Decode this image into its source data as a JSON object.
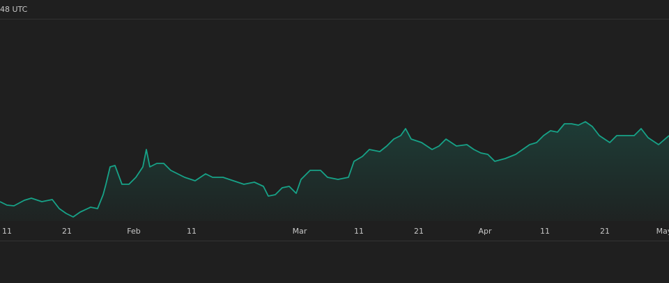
{
  "chart_data": {
    "type": "line",
    "title": "48 UTC",
    "color": "#17a388",
    "x": [
      0,
      10,
      20,
      35,
      45,
      60,
      75,
      85,
      95,
      105,
      115,
      130,
      140,
      148,
      152,
      158,
      165,
      175,
      185,
      195,
      205,
      210,
      215,
      225,
      235,
      245,
      255,
      265,
      280,
      295,
      305,
      320,
      335,
      350,
      365,
      378,
      385,
      395,
      405,
      415,
      425,
      432,
      445,
      460,
      470,
      485,
      500,
      508,
      520,
      530,
      545,
      555,
      565,
      575,
      582,
      590,
      605,
      620,
      630,
      640,
      655,
      670,
      680,
      690,
      700,
      710,
      725,
      740,
      750,
      760,
      770,
      780,
      790,
      800,
      810,
      820,
      830,
      840,
      850,
      860,
      875,
      885,
      900,
      910,
      920,
      930,
      945,
      960
    ],
    "values": [
      28,
      23,
      22,
      30,
      33,
      28,
      31,
      18,
      11,
      6,
      13,
      20,
      18,
      38,
      53,
      78,
      80,
      53,
      53,
      63,
      78,
      103,
      78,
      83,
      83,
      73,
      68,
      63,
      58,
      68,
      63,
      63,
      58,
      53,
      56,
      50,
      36,
      38,
      48,
      50,
      40,
      60,
      73,
      73,
      63,
      60,
      63,
      86,
      93,
      103,
      100,
      108,
      118,
      123,
      133,
      118,
      113,
      103,
      108,
      118,
      108,
      110,
      103,
      98,
      96,
      86,
      90,
      96,
      103,
      110,
      113,
      123,
      130,
      128,
      140,
      140,
      138,
      143,
      136,
      123,
      113,
      123,
      123,
      123,
      133,
      120,
      110,
      123
    ],
    "xlim": [
      0,
      960
    ],
    "ylim": [
      0,
      290
    ],
    "xticks": [
      {
        "value": 10,
        "label": "11"
      },
      {
        "value": 96,
        "label": "21"
      },
      {
        "value": 192,
        "label": "Feb"
      },
      {
        "value": 275,
        "label": "11"
      },
      {
        "value": 430,
        "label": "Mar"
      },
      {
        "value": 515,
        "label": "11"
      },
      {
        "value": 601,
        "label": "21"
      },
      {
        "value": 696,
        "label": "Apr"
      },
      {
        "value": 782,
        "label": "11"
      },
      {
        "value": 868,
        "label": "21"
      },
      {
        "value": 953,
        "label": "May"
      }
    ]
  }
}
